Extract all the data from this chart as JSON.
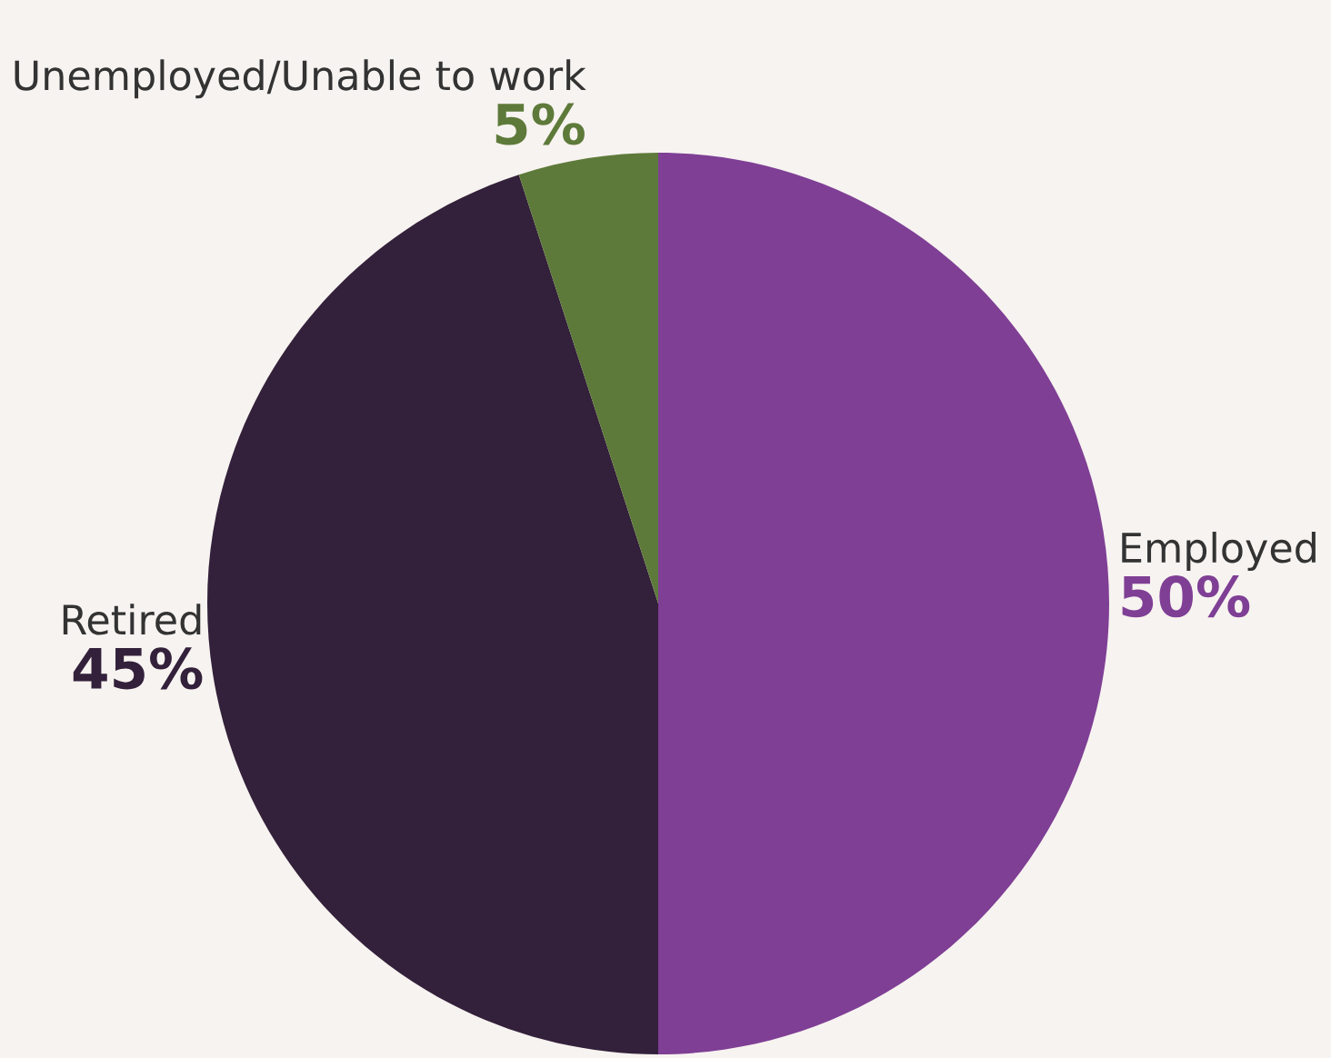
{
  "chart_data": {
    "type": "pie",
    "categories": [
      "Employed",
      "Retired",
      "Unemployed/Unable to work"
    ],
    "values": [
      50,
      45,
      5
    ],
    "value_labels": [
      "50%",
      "45%",
      "5%"
    ],
    "colors": [
      "#7f3f95",
      "#33203a",
      "#5e7a3a"
    ]
  }
}
